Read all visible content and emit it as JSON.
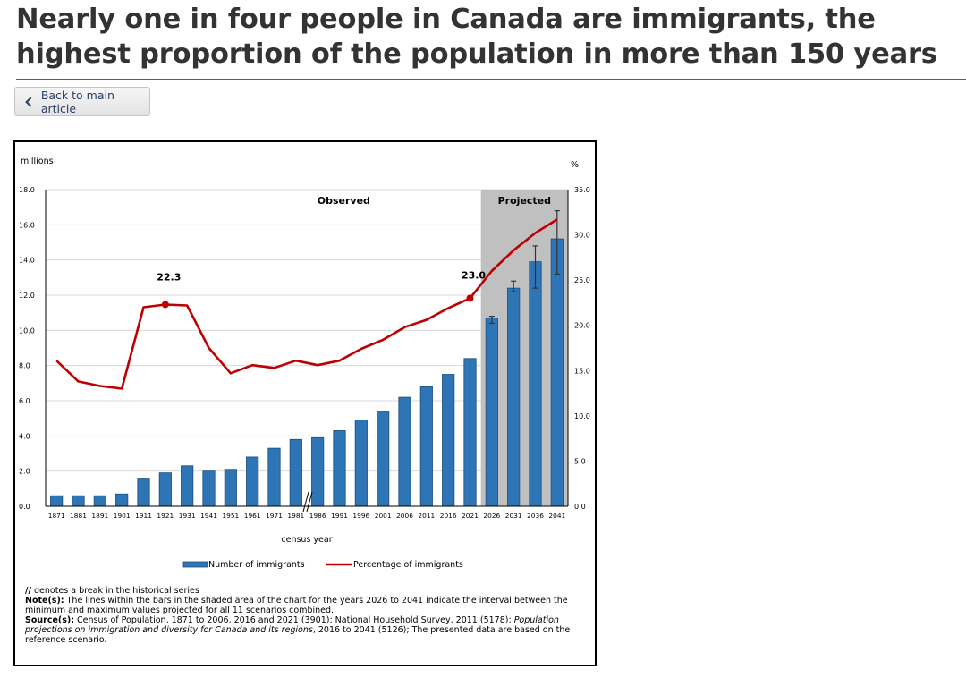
{
  "page": {
    "title": "Nearly one in four people in Canada are immigrants, the highest proportion of the population in more than 150 years",
    "back_label": "Back to main article"
  },
  "chart_data": {
    "type": "bar",
    "categories": [
      "1871",
      "1881",
      "1891",
      "1901",
      "1911",
      "1921",
      "1931",
      "1941",
      "1951",
      "1961",
      "1971",
      "1981",
      "1986",
      "1991",
      "1996",
      "2001",
      "2006",
      "2011",
      "2016",
      "2021",
      "2026",
      "2031",
      "2036",
      "2041"
    ],
    "series": [
      {
        "name": "Number of immigrants",
        "type": "bar",
        "axis": "left",
        "color": "#2e75b6",
        "values": [
          0.6,
          0.6,
          0.6,
          0.7,
          1.6,
          1.9,
          2.3,
          2.0,
          2.1,
          2.8,
          3.3,
          3.8,
          3.9,
          4.3,
          4.9,
          5.4,
          6.2,
          6.8,
          7.5,
          8.4,
          10.7,
          12.4,
          13.9,
          15.2
        ],
        "interval_low": [
          null,
          null,
          null,
          null,
          null,
          null,
          null,
          null,
          null,
          null,
          null,
          null,
          null,
          null,
          null,
          null,
          null,
          null,
          null,
          null,
          10.4,
          12.2,
          12.4,
          13.2
        ],
        "interval_high": [
          null,
          null,
          null,
          null,
          null,
          null,
          null,
          null,
          null,
          null,
          null,
          null,
          null,
          null,
          null,
          null,
          null,
          null,
          null,
          null,
          10.8,
          12.8,
          14.8,
          16.8
        ]
      },
      {
        "name": "Percentage of immigrants",
        "type": "line",
        "axis": "right",
        "color": "#c00000",
        "values": [
          16.1,
          13.8,
          13.3,
          13.0,
          22.0,
          22.3,
          22.2,
          17.5,
          14.7,
          15.6,
          15.3,
          16.1,
          15.6,
          16.1,
          17.4,
          18.4,
          19.8,
          20.6,
          21.9,
          23.0,
          26.0,
          28.3,
          30.2,
          31.7
        ]
      }
    ],
    "annotations": [
      {
        "category": "1921",
        "text": "22.3"
      },
      {
        "category": "2021",
        "text": "23.0"
      }
    ],
    "shaded_region": {
      "from": "2026",
      "to": "2041",
      "label": "Projected"
    },
    "observed_label": "Observed",
    "break_after": "1981",
    "break_symbol": "//",
    "y_left": {
      "label": "millions",
      "min": 0,
      "max": 18,
      "ticks": [
        "0.0",
        "2.0",
        "4.0",
        "6.0",
        "8.0",
        "10.0",
        "12.0",
        "14.0",
        "16.0",
        "18.0"
      ]
    },
    "y_right": {
      "label": "%",
      "min": 0,
      "max": 35,
      "ticks": [
        "0.0",
        "5.0",
        "10.0",
        "15.0",
        "20.0",
        "25.0",
        "30.0",
        "35.0"
      ]
    },
    "xlabel": "census year",
    "grid": true,
    "legend_position": "bottom"
  },
  "notes": {
    "break_text": "denotes a break in the historical series",
    "note_label": "Note(s):",
    "note_text": " The lines within the bars in the shaded area of the chart for the years 2026 to 2041 indicate the interval between the minimum and maximum values projected for all 11 scenarios combined.",
    "source_label": "Source(s):",
    "source_text": " Census of Population, 1871 to 2006, 2016 and 2021 (3901); National Household Survey, 2011 (5178); ",
    "source_italic": "Population projections on immigration and diversity for Canada and its regions",
    "source_tail": ", 2016 to 2041 (5126); The presented data are based on the reference scenario."
  }
}
